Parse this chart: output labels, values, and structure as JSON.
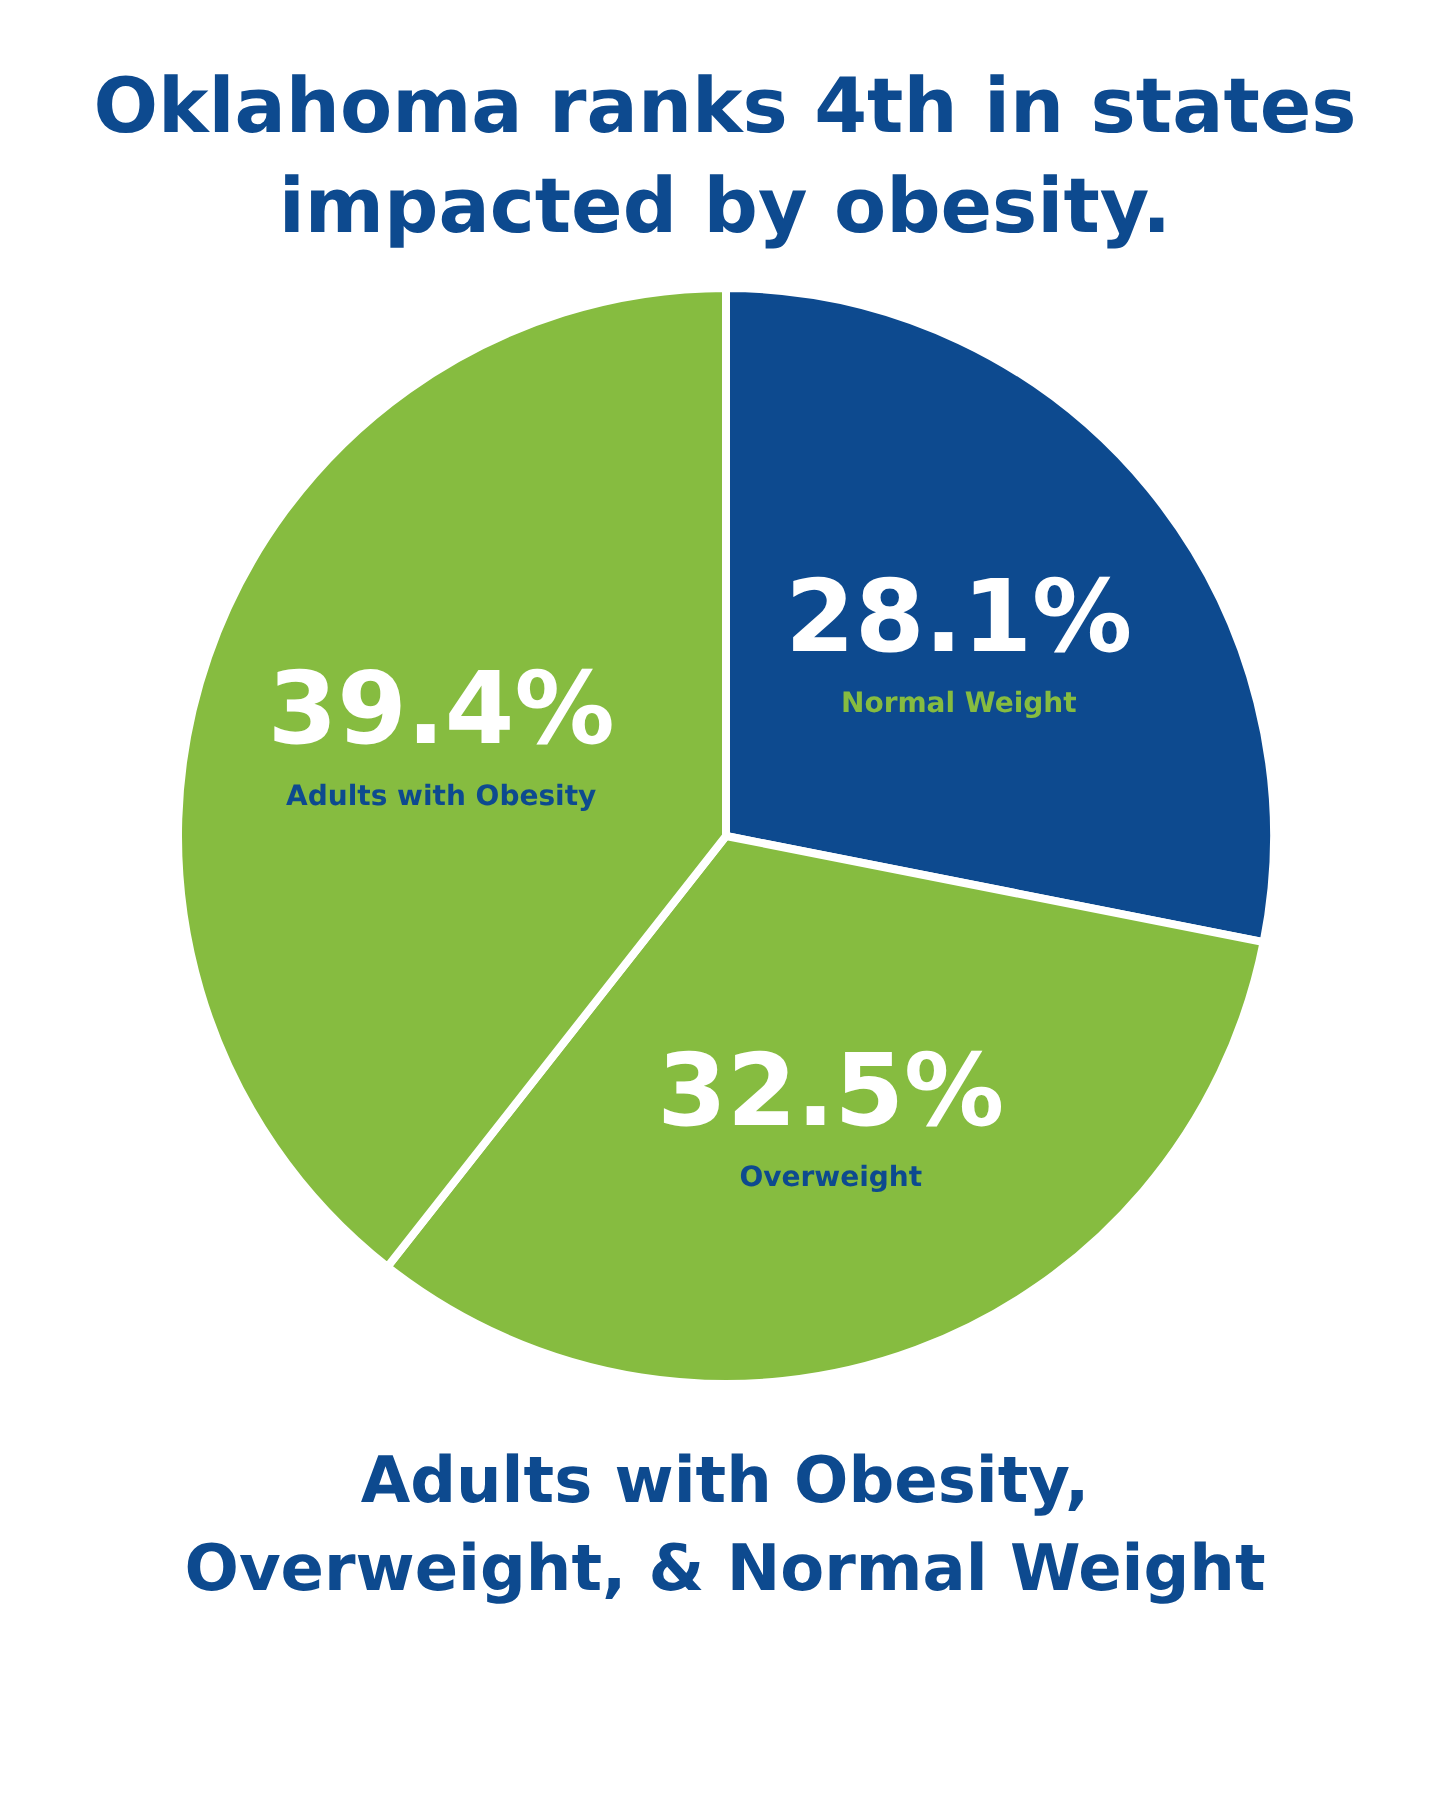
{
  "chart_data": {
    "type": "pie",
    "title": "Oklahoma ranks 4th in states impacted by obesity.",
    "subtitle": "Adults with Obesity, Overweight, & Normal Weight",
    "categories": [
      "Normal Weight",
      "Overweight",
      "Adults with Obesity"
    ],
    "values": [
      28.1,
      32.5,
      39.4
    ],
    "value_labels": [
      "28.1%",
      "32.5%",
      "39.4%"
    ],
    "colors": [
      "#0d4a8f",
      "#86bc40",
      "#86bc40"
    ],
    "legend": false
  }
}
